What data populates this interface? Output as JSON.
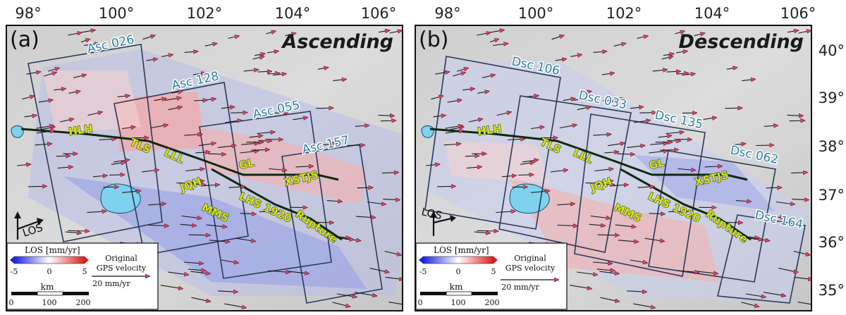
{
  "top_axis_labels": [
    "98°",
    "100°",
    "102°",
    "104°",
    "106°"
  ],
  "right_axis_labels": [
    "40°",
    "39°",
    "38°",
    "37°",
    "36°",
    "35°"
  ],
  "panels": [
    {
      "letter": "(a)",
      "mode": "Ascending",
      "tracks": [
        "Asc 026",
        "Asc 128",
        "Asc 055",
        "Asc 157"
      ],
      "los_label": "LOS"
    },
    {
      "letter": "(b)",
      "mode": "Descending",
      "tracks": [
        "Dsc 106",
        "Dsc 033",
        "Dsc 135",
        "Dsc 062",
        "Dsc 164"
      ],
      "los_label": "LOS"
    }
  ],
  "fault_labels": [
    "HLH",
    "TLS",
    "LLL",
    "GL",
    "JQH",
    "MMS",
    "XSTJS",
    "LHS 1920",
    "Rupture"
  ],
  "legend": {
    "title": "LOS [mm/yr]",
    "ticks": [
      "-5",
      "0",
      "5"
    ],
    "gps_label_1": "Original",
    "gps_label_2": "GPS velocity",
    "gps_scale": "20 mm/yr",
    "km_label": "km",
    "km_ticks": [
      "0",
      "100",
      "200"
    ]
  },
  "colors": {
    "colorbar_low": "#1d22e0",
    "colorbar_mid": "#ffffff",
    "colorbar_high": "#e01d1d",
    "frame": "#2b3a5a",
    "fault": "#0d2a10",
    "gps_arrow_head": "#d9456a",
    "label_fill": "#d4e61a",
    "track_text": "#2f7fa0",
    "lake": "#7fd2ee"
  }
}
